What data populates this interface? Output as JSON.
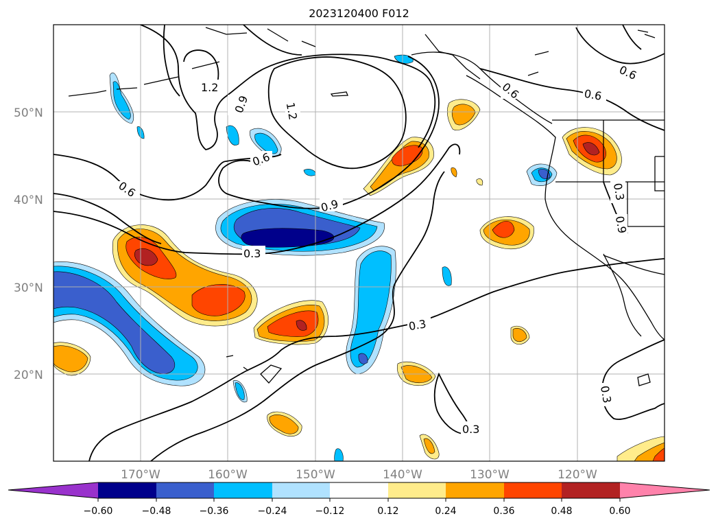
{
  "title": "2023120400 F012",
  "lat_labels": [
    "50°N",
    "40°N",
    "30°N",
    "20°N"
  ],
  "lon_labels": [
    "170°W",
    "160°W",
    "150°W",
    "140°W",
    "130°W",
    "120°W"
  ],
  "colorbar": {
    "ticks": [
      "−0.60",
      "−0.48",
      "−0.36",
      "−0.24",
      "−0.12",
      "0.12",
      "0.24",
      "0.36",
      "0.48",
      "0.60"
    ],
    "colors": [
      "#9932cc",
      "#00008b",
      "#3a5fcd",
      "#00bfff",
      "#b0e2ff",
      "#ffffff",
      "#ffec8b",
      "#ffa500",
      "#ff4500",
      "#b22222",
      "#ff82ab"
    ]
  },
  "contour_labels": [
    "1.2",
    "0.9",
    "1.2",
    "0.6",
    "0.6",
    "0.9",
    "0.3",
    "0.3",
    "0.3",
    "0.3",
    "0.6",
    "0.6",
    "0.3",
    "0.9",
    "0.6"
  ]
}
